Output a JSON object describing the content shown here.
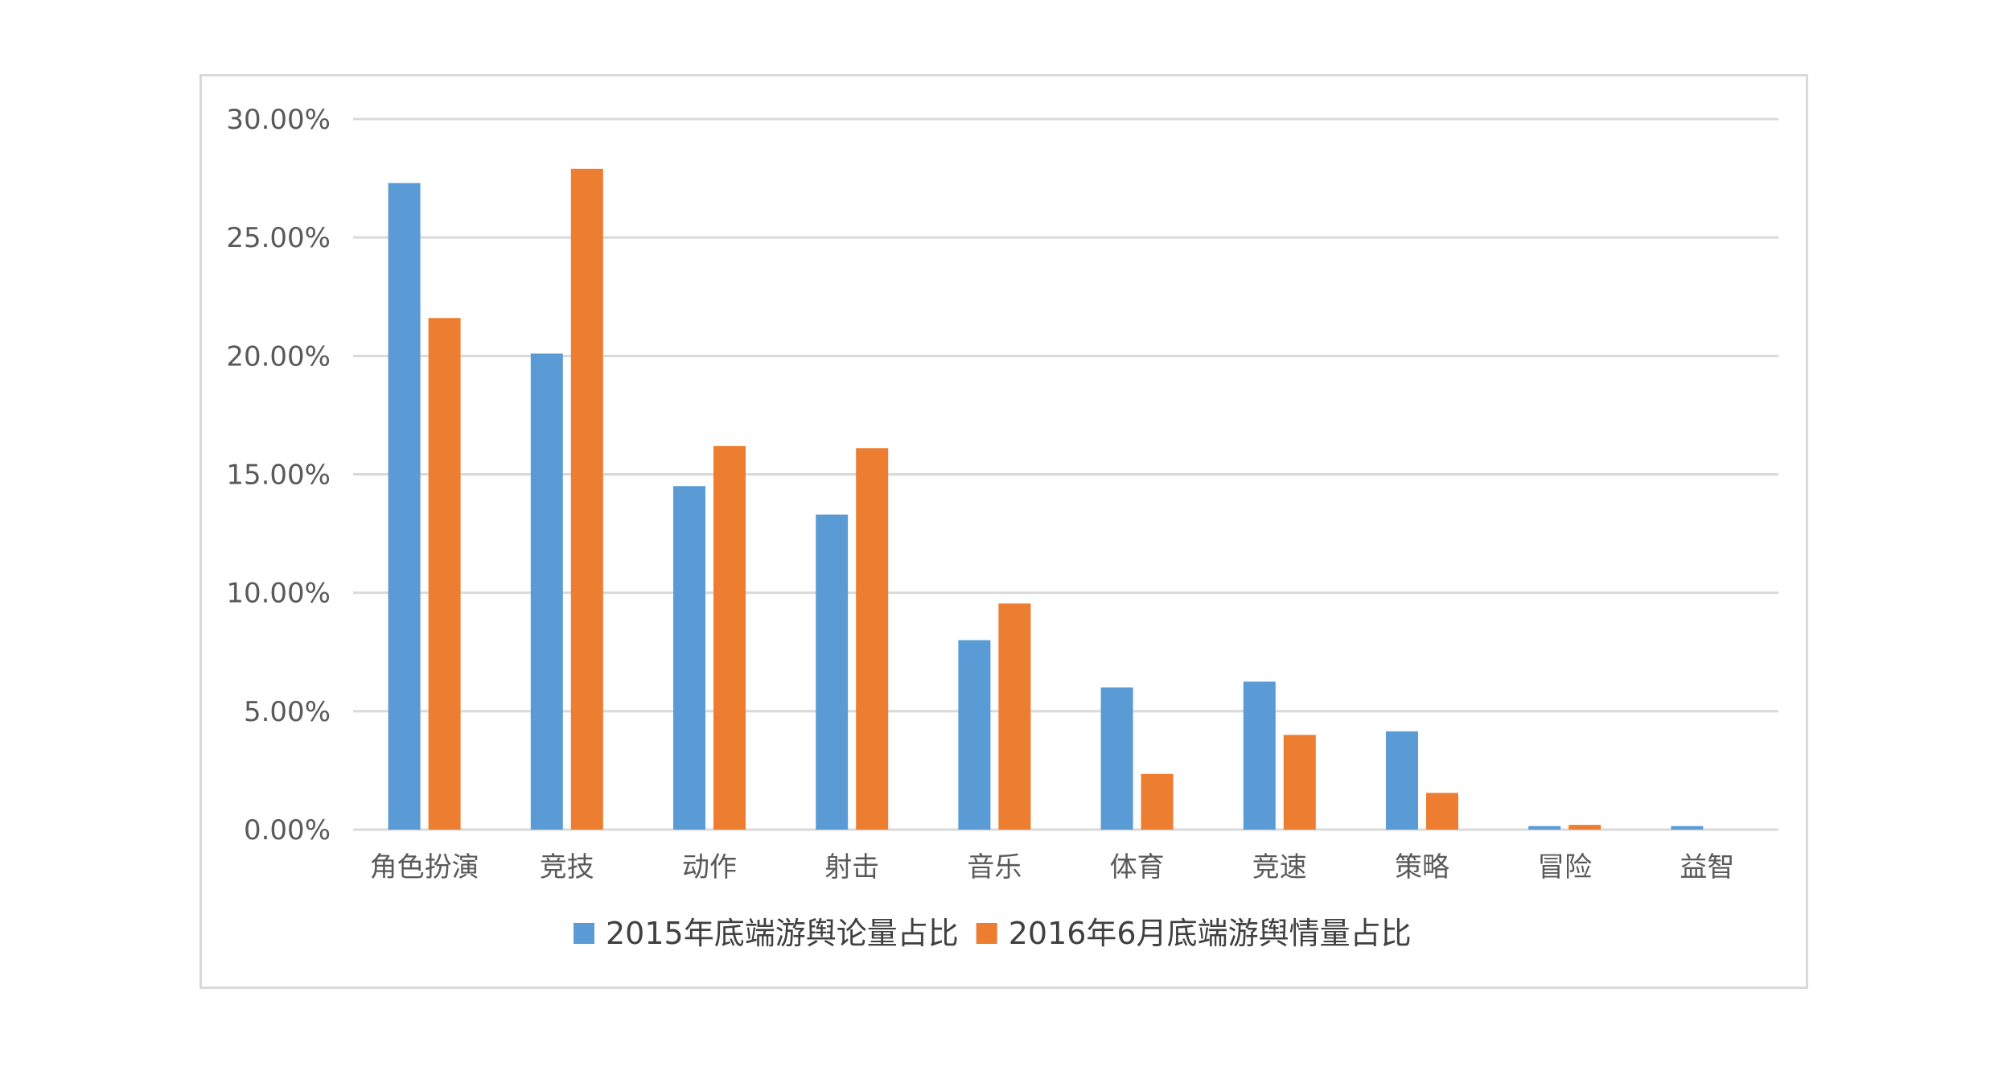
{
  "chart_data": {
    "type": "bar",
    "title": "",
    "xlabel": "",
    "ylabel": "",
    "categories": [
      "角色扮演",
      "竞技",
      "动作",
      "射击",
      "音乐",
      "体育",
      "竞速",
      "策略",
      "冒险",
      "益智"
    ],
    "series": [
      {
        "name": "2015年底端游舆论量占比",
        "color": "#5b9bd5",
        "values": [
          27.3,
          20.1,
          14.5,
          13.3,
          8.0,
          6.0,
          6.25,
          4.15,
          0.15,
          0.15
        ]
      },
      {
        "name": "2016年6月底端游舆情量占比",
        "color": "#ed7d31",
        "values": [
          21.6,
          27.9,
          16.2,
          16.1,
          9.55,
          2.35,
          4.0,
          1.55,
          0.2,
          0.0
        ]
      }
    ],
    "ylim": [
      0,
      30
    ],
    "yticks": [
      0,
      5,
      10,
      15,
      20,
      25,
      30
    ],
    "ytick_labels": [
      "0.00%",
      "5.00%",
      "10.00%",
      "15.00%",
      "20.00%",
      "25.00%",
      "30.00%"
    ],
    "grid": true,
    "legend_position": "bottom"
  }
}
